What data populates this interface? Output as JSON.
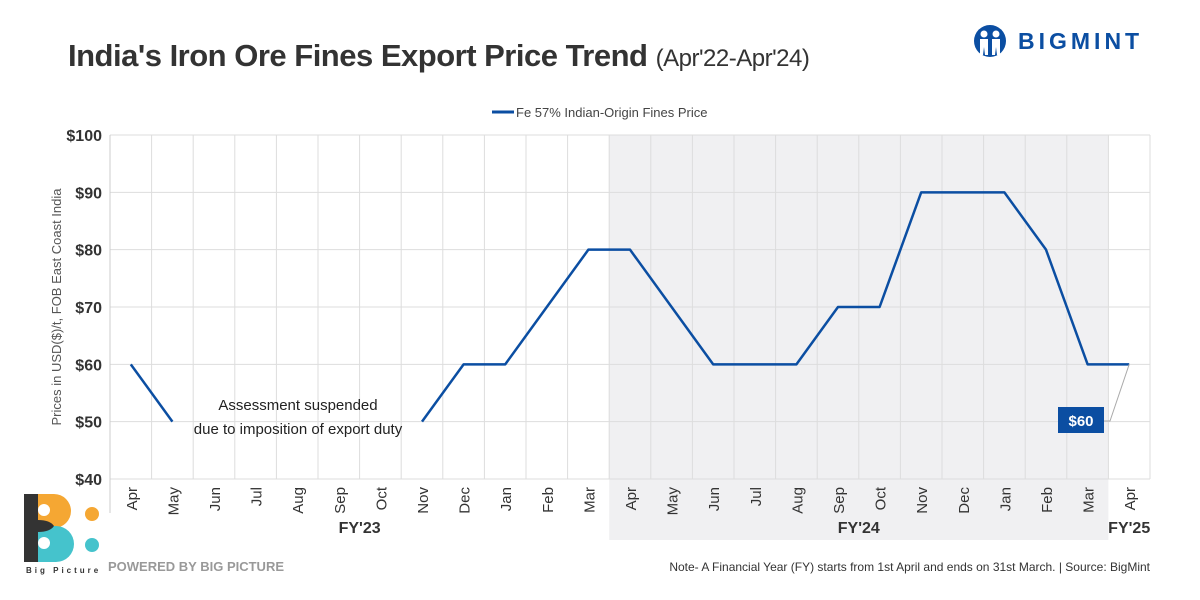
{
  "header": {
    "title": "India's Iron Ore Fines Export Price Trend",
    "subtitle": "(Apr'22-Apr'24)",
    "brand": "BIGMINT"
  },
  "footer": {
    "powered_by": "POWERED BY BIG PICTURE",
    "logo_label": "Big Picture",
    "note": "Note- A Financial Year (FY) starts from 1st April and ends on 31st March. | Source: BigMint"
  },
  "chart_data": {
    "type": "line",
    "ylabel": "Prices in USD($)/t, FOB East Coast India",
    "ylim": [
      40,
      100
    ],
    "yticks": [
      "$40",
      "$50",
      "$60",
      "$70",
      "$80",
      "$90",
      "$100"
    ],
    "grid": true,
    "legend_placement": "top-center",
    "categories": [
      "Apr",
      "May",
      "Jun",
      "Jul",
      "Aug",
      "Sep",
      "Oct",
      "Nov",
      "Dec",
      "Jan",
      "Feb",
      "Mar",
      "Apr",
      "May",
      "Jun",
      "Jul",
      "Aug",
      "Sep",
      "Oct",
      "Nov",
      "Dec",
      "Jan",
      "Feb",
      "Mar",
      "Apr"
    ],
    "fiscal_years": [
      {
        "label": "FY'23",
        "from": 0,
        "to": 11
      },
      {
        "label": "FY'24",
        "from": 12,
        "to": 23,
        "shaded": true
      },
      {
        "label": "FY'25",
        "from": 24,
        "to": 24
      }
    ],
    "series": [
      {
        "name": "Fe 57% Indian-Origin Fines Price",
        "color": "#0b4ea2",
        "values": [
          60,
          50,
          null,
          null,
          null,
          null,
          null,
          50,
          60,
          60,
          70,
          80,
          80,
          70,
          60,
          60,
          60,
          70,
          70,
          90,
          90,
          90,
          80,
          60,
          60
        ]
      }
    ],
    "annotations": [
      {
        "text_line1": "Assessment suspended",
        "text_line2": "due to imposition of export duty"
      },
      {
        "label": "$60",
        "at": "Apr'24"
      }
    ],
    "colors": {
      "line": "#0b4ea2",
      "shade": "#f0f0f2",
      "grid": "#dddddd"
    }
  }
}
